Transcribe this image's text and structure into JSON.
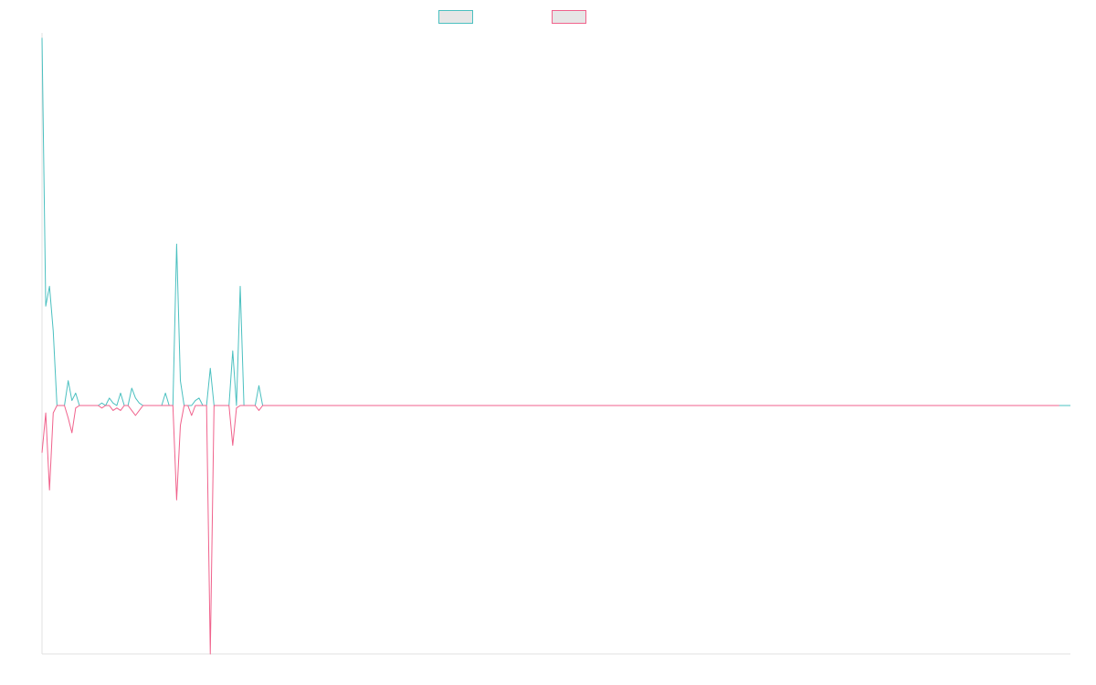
{
  "chart_data": {
    "type": "line",
    "title": "",
    "xlabel": "",
    "ylabel": "",
    "ylim": [
      -100,
      150
    ],
    "grid": false,
    "legend_placement": "top-center",
    "series": [
      {
        "color": "#4bc0c0",
        "values": [
          148,
          40,
          48,
          30,
          0,
          0,
          0,
          10,
          2,
          5,
          0,
          0,
          0,
          0,
          0,
          0,
          1,
          0,
          3,
          1,
          0,
          5,
          0,
          0,
          7,
          3,
          1,
          0,
          0,
          0,
          0,
          0,
          0,
          5,
          0,
          0,
          65,
          10,
          0,
          0,
          0,
          2,
          3,
          0,
          0,
          15,
          0,
          0,
          0,
          0,
          0,
          22,
          0,
          48,
          0,
          0,
          0,
          0,
          8,
          0,
          0,
          0,
          0,
          0,
          0,
          0,
          0,
          0,
          0,
          0,
          0,
          0,
          0,
          0,
          0,
          0,
          0,
          0,
          0,
          0,
          0,
          0,
          0,
          0,
          0,
          0,
          0,
          0,
          0,
          0,
          0,
          0,
          0,
          0,
          0,
          0,
          0,
          0,
          0,
          0,
          0,
          0,
          0,
          0,
          0,
          0,
          0,
          0,
          0,
          0,
          0,
          0,
          0,
          0,
          0,
          0,
          0,
          0,
          0,
          0,
          0,
          0,
          0,
          0,
          0,
          0,
          0,
          0,
          0,
          0,
          0,
          0,
          0,
          0,
          0,
          0,
          0,
          0,
          0,
          0,
          0,
          0,
          0,
          0,
          0,
          0,
          0,
          0,
          0,
          0,
          0,
          0,
          0,
          0,
          0,
          0,
          0,
          0,
          0,
          0,
          0,
          0,
          0,
          0,
          0,
          0,
          0,
          0,
          0,
          0,
          0,
          0,
          0,
          0,
          0,
          0,
          0,
          0,
          0,
          0,
          0,
          0,
          0,
          0,
          0,
          0,
          0,
          0,
          0,
          0,
          0,
          0,
          0,
          0,
          0,
          0,
          0,
          0,
          0,
          0,
          0,
          0,
          0,
          0,
          0,
          0,
          0,
          0,
          0,
          0,
          0,
          0,
          0,
          0,
          0,
          0,
          0,
          0,
          0,
          0,
          0,
          0,
          0,
          0,
          0,
          0,
          0,
          0,
          0,
          0,
          0,
          0,
          0,
          0,
          0,
          0,
          0,
          0,
          0,
          0,
          0,
          0,
          0,
          0,
          0,
          0,
          0,
          0,
          0,
          0,
          0,
          0,
          0,
          0,
          0,
          0,
          0,
          0,
          0,
          0,
          0,
          0,
          0,
          0,
          0,
          0,
          0,
          0,
          0,
          0,
          0,
          0,
          0,
          0,
          0,
          0
        ]
      },
      {
        "color": "#f0628c",
        "values": [
          -19,
          -3,
          -34,
          -3,
          0,
          0,
          0,
          -5,
          -11,
          -1,
          0,
          0,
          0,
          0,
          0,
          0,
          -1,
          0,
          0,
          -2,
          -1,
          -2,
          0,
          0,
          -2,
          -4,
          -2,
          0,
          0,
          0,
          0,
          0,
          0,
          0,
          0,
          0,
          -38,
          -8,
          0,
          0,
          -4,
          0,
          0,
          0,
          0,
          -100,
          0,
          0,
          0,
          0,
          0,
          -16,
          -1,
          0,
          0,
          0,
          0,
          0,
          -2,
          0,
          0,
          0,
          0,
          0,
          0,
          0,
          0,
          0,
          0,
          0,
          0,
          0,
          0,
          0,
          0,
          0,
          0,
          0,
          0,
          0,
          0,
          0,
          0,
          0,
          0,
          0,
          0,
          0,
          0,
          0,
          0,
          0,
          0,
          0,
          0,
          0,
          0,
          0,
          0,
          0,
          0,
          0,
          0,
          0,
          0,
          0,
          0,
          0,
          0,
          0,
          0,
          0,
          0,
          0,
          0,
          0,
          0,
          0,
          0,
          0,
          0,
          0,
          0,
          0,
          0,
          0,
          0,
          0,
          0,
          0,
          0,
          0,
          0,
          0,
          0,
          0,
          0,
          0,
          0,
          0,
          0,
          0,
          0,
          0,
          0,
          0,
          0,
          0,
          0,
          0,
          0,
          0,
          0,
          0,
          0,
          0,
          0,
          0,
          0,
          0,
          0,
          0,
          0,
          0,
          0,
          0,
          0,
          0,
          0,
          0,
          0,
          0,
          0,
          0,
          0,
          0,
          0,
          0,
          0,
          0,
          0,
          0,
          0,
          0,
          0,
          0,
          0,
          0,
          0,
          0,
          0,
          0,
          0,
          0,
          0,
          0,
          0,
          0,
          0,
          0,
          0,
          0,
          0,
          0,
          0,
          0,
          0,
          0,
          0,
          0,
          0,
          0,
          0,
          0,
          0,
          0,
          0,
          0,
          0,
          0,
          0,
          0,
          0,
          0,
          0,
          0,
          0,
          0,
          0,
          0,
          0,
          0,
          0,
          0,
          0,
          0,
          0,
          0,
          0,
          0,
          0,
          0,
          0,
          0,
          0,
          0,
          0,
          0,
          0,
          0,
          0,
          0,
          0,
          0,
          0,
          0,
          0,
          0,
          0,
          0,
          0,
          0,
          0,
          0,
          0,
          0,
          0,
          0,
          0,
          0,
          0,
          0,
          0
        ]
      }
    ]
  }
}
